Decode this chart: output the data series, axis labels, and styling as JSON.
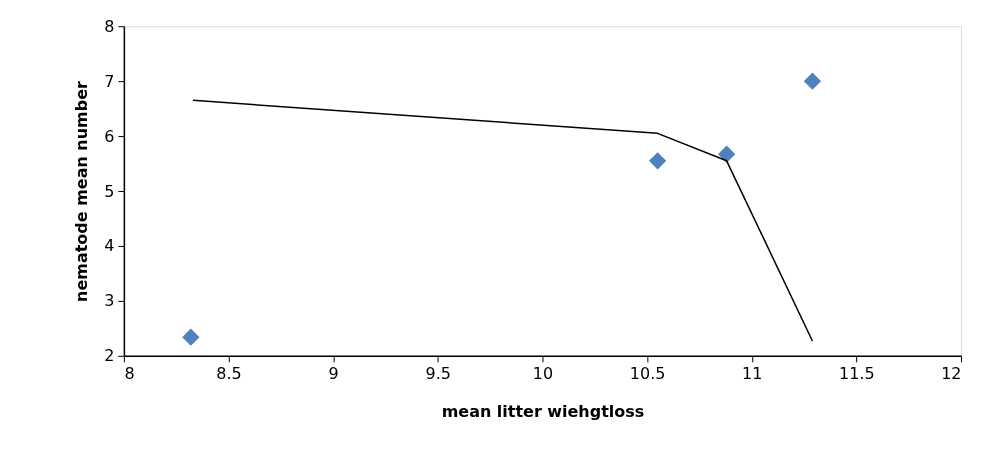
{
  "chart_data": {
    "type": "scatter",
    "xlabel": "mean litter wiehgtloss",
    "ylabel": "nematode mean number",
    "xlim": [
      8,
      12
    ],
    "xticks": [
      8,
      8.5,
      9,
      9.5,
      10,
      10.5,
      11,
      11.5,
      12
    ],
    "ylim": [
      2,
      8
    ],
    "yticks": [
      2,
      3,
      4,
      5,
      6,
      7,
      8
    ],
    "grid": false,
    "series": [
      {
        "color": "#4f81bd",
        "marker": "diamond",
        "x": [
          8.32,
          10.55,
          10.88,
          11.29
        ],
        "values": [
          2.34,
          5.55,
          5.67,
          7.0
        ]
      },
      {
        "type": "line",
        "color": "#000000",
        "marker": "none",
        "line_style": "solid",
        "x": [
          8.33,
          10.55,
          10.88,
          11.29
        ],
        "values": [
          6.65,
          6.05,
          5.55,
          2.27
        ]
      }
    ]
  }
}
